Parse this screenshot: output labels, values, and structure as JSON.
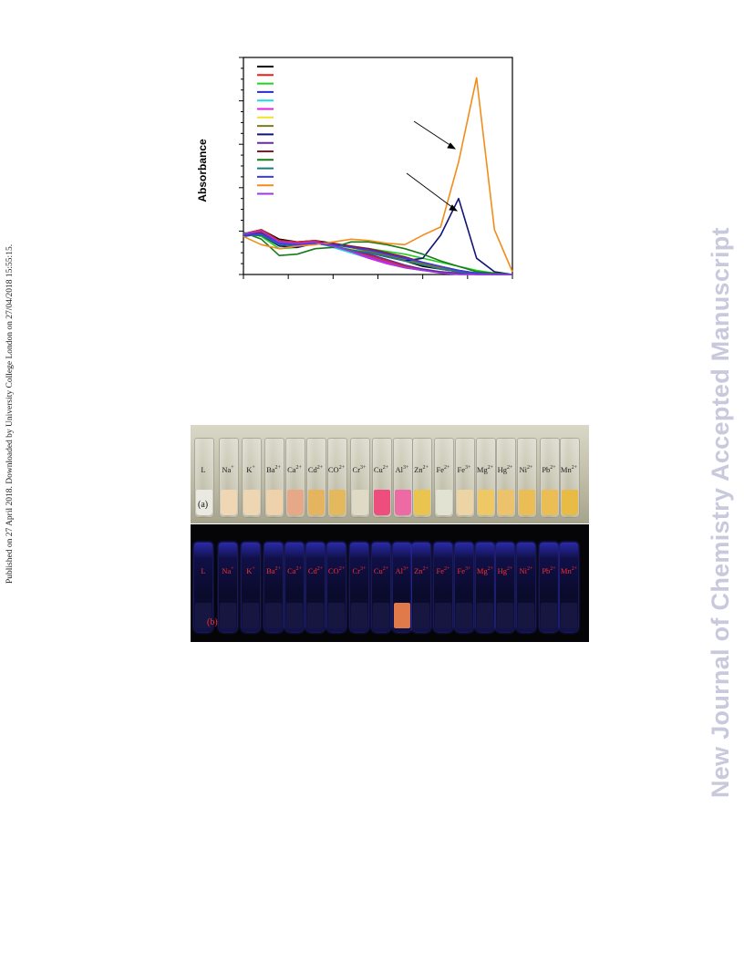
{
  "side_note": "Published on 27 April 2018. Downloaded by University College London on 27/04/2018 15:55:15.",
  "watermark": "New Journal of Chemistry Accepted Manuscript",
  "chart_data": {
    "type": "line",
    "title": "",
    "xlabel": "",
    "ylabel": "Absorbance",
    "grid": false,
    "legend_placement": "top-left",
    "series": [
      {
        "color": "#000000",
        "x": [
          300,
          320,
          340,
          360,
          380,
          400,
          420,
          440,
          460,
          480,
          500,
          520,
          540,
          560,
          580,
          600
        ],
        "values": [
          0.3,
          0.33,
          0.26,
          0.24,
          0.25,
          0.23,
          0.2,
          0.17,
          0.14,
          0.1,
          0.06,
          0.04,
          0.02,
          0.01,
          0.0,
          0.0
        ]
      },
      {
        "color": "#e8201d",
        "x": [
          300,
          320,
          340,
          360,
          380,
          400,
          420,
          440,
          460,
          480,
          500,
          520,
          540,
          560,
          580,
          600
        ],
        "values": [
          0.3,
          0.33,
          0.25,
          0.24,
          0.25,
          0.22,
          0.18,
          0.14,
          0.1,
          0.06,
          0.03,
          0.02,
          0.01,
          0.0,
          0.0,
          0.0
        ]
      },
      {
        "color": "#22d022",
        "x": [
          300,
          320,
          340,
          360,
          380,
          400,
          420,
          440,
          460,
          480,
          500,
          520,
          540,
          560,
          580,
          600
        ],
        "values": [
          0.31,
          0.28,
          0.19,
          0.2,
          0.23,
          0.21,
          0.2,
          0.19,
          0.17,
          0.15,
          0.12,
          0.09,
          0.06,
          0.03,
          0.01,
          0.0
        ]
      },
      {
        "color": "#2b2bd0",
        "x": [
          300,
          320,
          340,
          360,
          380,
          400,
          420,
          440,
          460,
          480,
          500,
          520,
          540,
          560,
          580,
          600
        ],
        "values": [
          0.28,
          0.3,
          0.24,
          0.23,
          0.24,
          0.22,
          0.2,
          0.18,
          0.15,
          0.12,
          0.08,
          0.05,
          0.03,
          0.01,
          0.0,
          0.0
        ]
      },
      {
        "color": "#22d8e0",
        "x": [
          300,
          320,
          340,
          360,
          380,
          400,
          420,
          440,
          460,
          480,
          500,
          520,
          540,
          560,
          580,
          600
        ],
        "values": [
          0.29,
          0.31,
          0.24,
          0.23,
          0.24,
          0.2,
          0.16,
          0.12,
          0.08,
          0.05,
          0.03,
          0.02,
          0.01,
          0.0,
          0.0,
          0.0
        ]
      },
      {
        "color": "#e020e0",
        "x": [
          300,
          320,
          340,
          360,
          380,
          400,
          420,
          440,
          460,
          480,
          500,
          520,
          540,
          560,
          580,
          600
        ],
        "values": [
          0.29,
          0.32,
          0.24,
          0.23,
          0.24,
          0.21,
          0.17,
          0.12,
          0.08,
          0.05,
          0.03,
          0.02,
          0.01,
          0.0,
          0.0,
          0.0
        ]
      },
      {
        "color": "#f2e22a",
        "x": [
          300,
          320,
          340,
          360,
          380,
          400,
          420,
          440,
          460,
          480,
          500,
          520,
          540,
          560,
          580,
          600
        ],
        "values": [
          0.3,
          0.31,
          0.24,
          0.23,
          0.24,
          0.22,
          0.19,
          0.16,
          0.13,
          0.1,
          0.07,
          0.05,
          0.03,
          0.01,
          0.0,
          0.0
        ]
      },
      {
        "color": "#7a7a1e",
        "x": [
          300,
          320,
          340,
          360,
          380,
          400,
          420,
          440,
          460,
          480,
          500,
          520,
          540,
          560,
          580,
          600
        ],
        "values": [
          0.3,
          0.31,
          0.23,
          0.22,
          0.23,
          0.22,
          0.2,
          0.17,
          0.14,
          0.11,
          0.08,
          0.05,
          0.03,
          0.01,
          0.0,
          0.0
        ]
      },
      {
        "color": "#12127a",
        "x": [
          300,
          320,
          340,
          360,
          380,
          400,
          420,
          440,
          460,
          480,
          500,
          520,
          540,
          560,
          580,
          600
        ],
        "values": [
          0.29,
          0.29,
          0.21,
          0.2,
          0.23,
          0.21,
          0.18,
          0.16,
          0.13,
          0.1,
          0.12,
          0.29,
          0.56,
          0.12,
          0.02,
          0.0
        ]
      },
      {
        "color": "#6a2a9a",
        "x": [
          300,
          320,
          340,
          360,
          380,
          400,
          420,
          440,
          460,
          480,
          500,
          520,
          540,
          560,
          580,
          600
        ],
        "values": [
          0.3,
          0.32,
          0.24,
          0.23,
          0.24,
          0.21,
          0.18,
          0.15,
          0.11,
          0.07,
          0.04,
          0.02,
          0.01,
          0.0,
          0.0,
          0.0
        ]
      },
      {
        "color": "#8a1a2a",
        "x": [
          300,
          320,
          340,
          360,
          380,
          400,
          420,
          440,
          460,
          480,
          500,
          520,
          540,
          560,
          580,
          600
        ],
        "values": [
          0.3,
          0.31,
          0.24,
          0.23,
          0.24,
          0.23,
          0.21,
          0.19,
          0.16,
          0.13,
          0.09,
          0.06,
          0.03,
          0.01,
          0.0,
          0.0
        ]
      },
      {
        "color": "#1a7a1a",
        "x": [
          300,
          320,
          340,
          360,
          380,
          400,
          420,
          440,
          460,
          480,
          500,
          520,
          540,
          560,
          580,
          600
        ],
        "values": [
          0.31,
          0.26,
          0.14,
          0.15,
          0.19,
          0.2,
          0.24,
          0.24,
          0.22,
          0.19,
          0.15,
          0.1,
          0.06,
          0.02,
          0.01,
          0.0
        ]
      },
      {
        "color": "#1a7a8a",
        "x": [
          300,
          320,
          340,
          360,
          380,
          400,
          420,
          440,
          460,
          480,
          500,
          520,
          540,
          560,
          580,
          600
        ],
        "values": [
          0.29,
          0.29,
          0.22,
          0.21,
          0.23,
          0.21,
          0.18,
          0.16,
          0.13,
          0.1,
          0.07,
          0.04,
          0.02,
          0.01,
          0.0,
          0.0
        ]
      },
      {
        "color": "#3a3ae8",
        "x": [
          300,
          320,
          340,
          360,
          380,
          400,
          420,
          440,
          460,
          480,
          500,
          520,
          540,
          560,
          580,
          600
        ],
        "values": [
          0.29,
          0.3,
          0.23,
          0.22,
          0.23,
          0.22,
          0.2,
          0.18,
          0.15,
          0.12,
          0.09,
          0.06,
          0.03,
          0.01,
          0.0,
          0.0
        ]
      },
      {
        "color": "#f28c1a",
        "x": [
          300,
          320,
          340,
          360,
          380,
          400,
          420,
          440,
          460,
          480,
          500,
          520,
          540,
          560,
          580,
          600
        ],
        "values": [
          0.28,
          0.22,
          0.19,
          0.21,
          0.22,
          0.24,
          0.26,
          0.25,
          0.23,
          0.22,
          0.29,
          0.35,
          0.83,
          1.45,
          0.33,
          0.02
        ]
      },
      {
        "color": "#9a3ae0",
        "x": [
          300,
          320,
          340,
          360,
          380,
          400,
          420,
          440,
          460,
          480,
          500,
          520,
          540,
          560,
          580,
          600
        ],
        "values": [
          0.3,
          0.32,
          0.24,
          0.23,
          0.24,
          0.21,
          0.17,
          0.13,
          0.09,
          0.05,
          0.03,
          0.01,
          0.0,
          0.0,
          0.0,
          0.0
        ]
      }
    ],
    "xlim": [
      300,
      600
    ],
    "ylim": [
      0,
      1.6
    ]
  },
  "panel_a": {
    "tag": "(a)",
    "labels": [
      "L",
      "Na",
      "K",
      "Ba",
      "Ca",
      "Cd",
      "CO",
      "Cr",
      "Cu",
      "Al",
      "Zn",
      "Fe",
      "Fe",
      "Mg",
      "Hg",
      "Ni",
      "Pb",
      "Mn"
    ],
    "charges": [
      "",
      "+",
      "+",
      "2+",
      "2+",
      "2+",
      "2+",
      "3+",
      "2+",
      "3+",
      "2+",
      "2+",
      "3+",
      "2+",
      "2+",
      "2+",
      "2+",
      "2+"
    ],
    "liquid_colors": [
      "#e9e9e1",
      "#efd7b4",
      "#efd6b2",
      "#eed2ac",
      "#e7a888",
      "#e4b45e",
      "#e4b85c",
      "#dedac6",
      "#ee4e7e",
      "#ee6aa4",
      "#e9c44e",
      "#e2e2d2",
      "#ecd4a4",
      "#eec864",
      "#ecc26c",
      "#eabe54",
      "#eabe54",
      "#e8bc44"
    ]
  },
  "panel_b": {
    "tag": "(b)",
    "labels": [
      "L",
      "Na",
      "K",
      "Ba",
      "Ca",
      "Cd",
      "CO",
      "Cr",
      "Cu",
      "Al",
      "Zn",
      "Fe",
      "Fe",
      "Mg",
      "Hg",
      "Ni",
      "Pb",
      "Mn"
    ],
    "charges": [
      "",
      "+",
      "+",
      "2+",
      "2+",
      "2+",
      "2+",
      "3+",
      "2+",
      "3+",
      "2+",
      "2+",
      "3+",
      "2+",
      "2+",
      "2+",
      "2+",
      "2+"
    ],
    "glow_colors": [
      "#161640",
      "#161640",
      "#161640",
      "#161640",
      "#161640",
      "#161640",
      "#161640",
      "#161640",
      "#161640",
      "#e07a4a",
      "#161640",
      "#161640",
      "#161640",
      "#161640",
      "#161640",
      "#161640",
      "#161640",
      "#161640"
    ]
  }
}
